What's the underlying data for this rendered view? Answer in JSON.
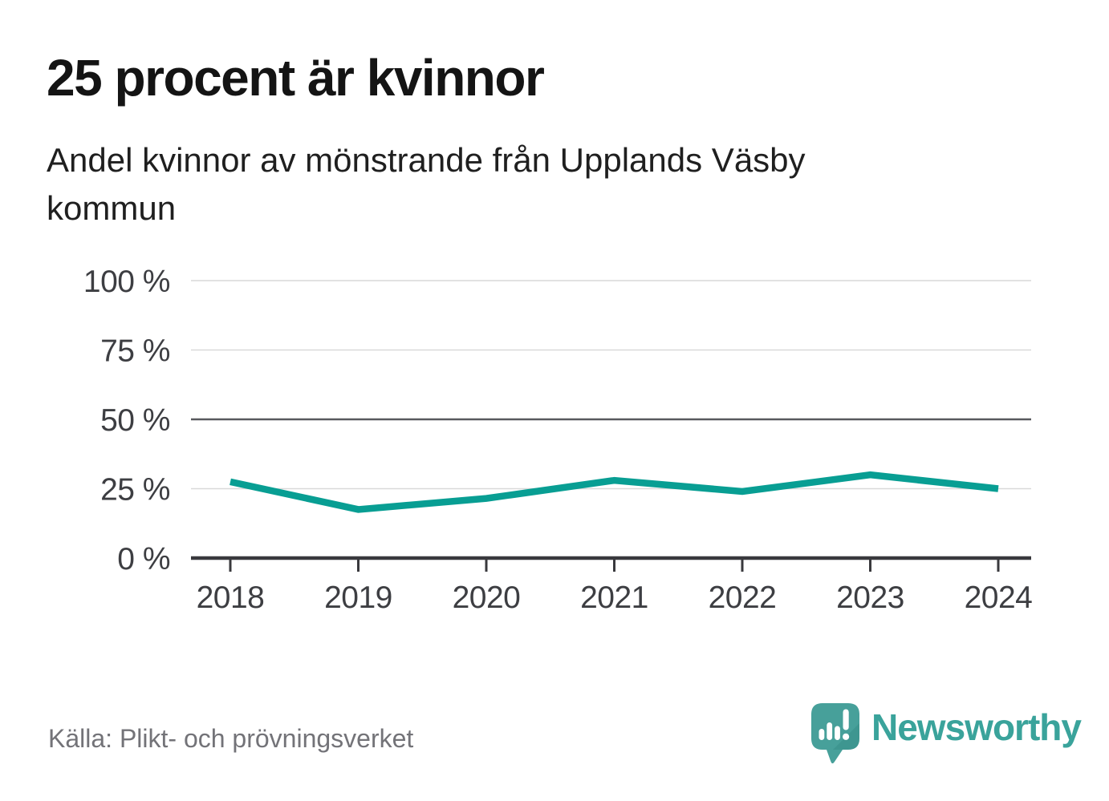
{
  "header": {
    "title": "25 procent är kvinnor",
    "subtitle": "Andel kvinnor av mönstrande från Upplands Väsby kommun",
    "subtitle_line1": "Andel kvinnor av mönstrande från Upplands Väsby",
    "subtitle_line2": "kommun"
  },
  "footer": {
    "source": "Källa: Plikt- och prövningsverket",
    "brand": "Newsworthy"
  },
  "colors": {
    "background": "#ffffff",
    "accent_line": "#089e93",
    "grid_light": "#d9d9d9",
    "grid_strong": "#58595d",
    "axis": "#39393d",
    "axis_label": "#3d3e42",
    "title_text": "#141414",
    "subtitle_text": "#1f1f1f",
    "source_text": "#737378",
    "logo_bubble": "#47a09a",
    "logo_bubble_shade": "#2f837e",
    "logo_text": "#3aa39b"
  },
  "chart_data": {
    "type": "line",
    "title": "25 procent är kvinnor",
    "subtitle": "Andel kvinnor av mönstrande från Upplands Väsby kommun",
    "x": [
      2018,
      2019,
      2020,
      2021,
      2022,
      2023,
      2024
    ],
    "series": [
      {
        "name": "Andel kvinnor av mönstrande",
        "values": [
          27.5,
          17.5,
          21.5,
          28,
          24,
          30,
          25
        ],
        "color": "#089e93"
      }
    ],
    "xlabel": "",
    "ylabel": "",
    "ylim": [
      0,
      100
    ],
    "yticks": [
      0,
      25,
      50,
      75,
      100
    ],
    "ytick_suffix": " %",
    "grid": "horizontal",
    "legend": "none",
    "source": "Källa: Plikt- och prövningsverket"
  }
}
